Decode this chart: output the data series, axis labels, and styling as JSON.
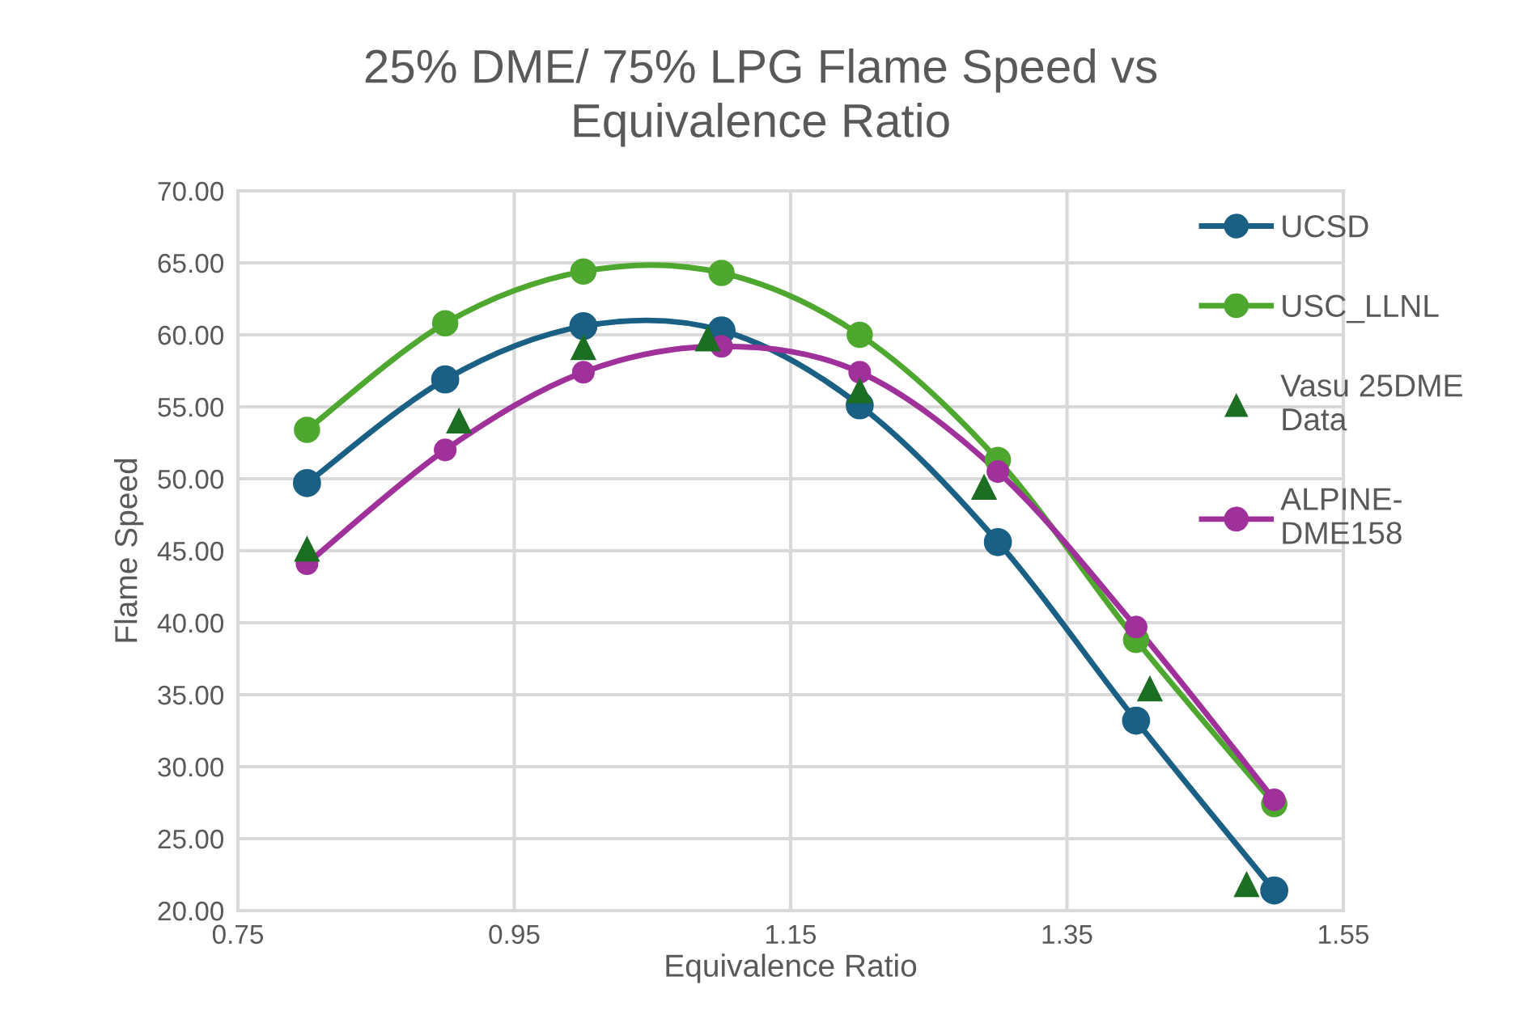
{
  "chart_data": {
    "type": "line",
    "title": "25% DME/ 75% LPG Flame Speed vs Equivalence Ratio",
    "xlabel": "Equivalence Ratio",
    "ylabel": "Flame Speed",
    "series": [
      {
        "name": "UCSD",
        "color": "#1a5f84",
        "marker": "circle",
        "x": [
          0.8,
          0.9,
          1.0,
          1.1,
          1.2,
          1.3,
          1.4,
          1.5
        ],
        "values": [
          49.7,
          56.9,
          60.6,
          60.3,
          55.1,
          45.6,
          33.2,
          21.4
        ]
      },
      {
        "name": "USC_LLNL",
        "color": "#4ea72e",
        "marker": "circle",
        "x": [
          0.8,
          0.9,
          1.0,
          1.1,
          1.2,
          1.3,
          1.4,
          1.5
        ],
        "values": [
          53.4,
          60.8,
          64.4,
          64.3,
          60.0,
          51.3,
          38.8,
          27.4
        ]
      },
      {
        "name": "Vasu 25DME Data",
        "color": "#1b6e22",
        "type": "scatter",
        "marker": "triangle",
        "x": [
          0.8,
          0.91,
          1.0,
          1.09,
          1.2,
          1.29,
          1.41,
          1.48
        ],
        "values": [
          45.1,
          54.0,
          59.1,
          59.7,
          56.1,
          49.4,
          35.4,
          21.8
        ]
      },
      {
        "name": "ALPINE-DME158",
        "color": "#a0309a",
        "marker": "circle",
        "x": [
          0.8,
          0.9,
          1.0,
          1.1,
          1.2,
          1.3,
          1.4,
          1.5
        ],
        "values": [
          44.1,
          52.0,
          57.4,
          59.2,
          57.4,
          50.5,
          39.7,
          27.7
        ]
      }
    ],
    "xlim": [
      0.75,
      1.55
    ],
    "xticks": [
      0.75,
      0.95,
      1.15,
      1.35,
      1.55
    ],
    "ylim": [
      20,
      70
    ],
    "yticks": [
      {
        "value": 20,
        "label": "20.00"
      },
      {
        "value": 25,
        "label": "25.00"
      },
      {
        "value": 30,
        "label": "30.00"
      },
      {
        "value": 35,
        "label": "35.00"
      },
      {
        "value": 40,
        "label": "40.00"
      },
      {
        "value": 45,
        "label": "45.00"
      },
      {
        "value": 50,
        "label": "50.00"
      },
      {
        "value": 55,
        "label": "55.00"
      },
      {
        "value": 60,
        "label": "60.00"
      },
      {
        "value": 65,
        "label": "65.00"
      },
      {
        "value": 70,
        "label": "70.00"
      }
    ],
    "grid": true,
    "legend": "right"
  }
}
